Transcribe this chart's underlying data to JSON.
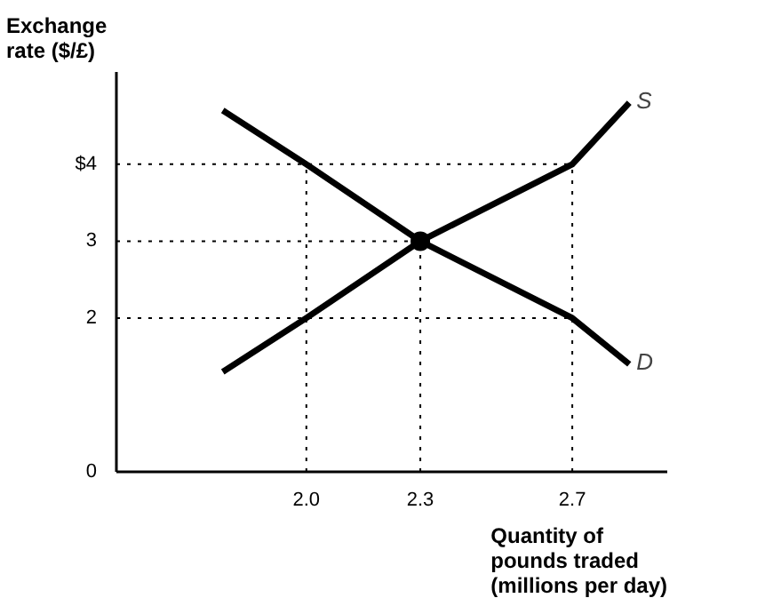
{
  "chart_data": {
    "type": "line",
    "xlabel": "Quantity of pounds traded (millions per day)",
    "ylabel": "Exchange rate ($/£)",
    "xlim": [
      1.5,
      2.95
    ],
    "ylim": [
      0,
      5.2
    ],
    "xticks": [
      {
        "value": 2.0,
        "label": "2.0"
      },
      2.3,
      2.7
    ],
    "yticks": [
      0,
      2,
      3,
      {
        "value": 4,
        "label": "$4"
      }
    ],
    "grid": false,
    "line_style": "solid",
    "series": [
      {
        "name": "S",
        "color": "#000000",
        "x": [
          1.78,
          2.0,
          2.3,
          2.7,
          2.85
        ],
        "values": [
          1.3,
          2,
          3,
          4,
          4.8
        ]
      },
      {
        "name": "D",
        "color": "#000000",
        "x": [
          1.78,
          2.0,
          2.3,
          2.7,
          2.85
        ],
        "values": [
          4.7,
          4,
          3,
          2,
          1.4
        ]
      },
      {
        "type": "scatter",
        "marker": "circle",
        "color": "#000000",
        "x": [
          2.3
        ],
        "values": [
          3
        ]
      }
    ],
    "ref_lines": [
      {
        "axis": "y",
        "value": 4,
        "line_style": "dotted",
        "color": "#000000"
      },
      {
        "axis": "y",
        "value": 3,
        "line_style": "dotted",
        "color": "#000000"
      },
      {
        "axis": "y",
        "value": 2,
        "line_style": "dotted",
        "color": "#000000"
      },
      {
        "axis": "x",
        "value": 2.0,
        "line_style": "dotted",
        "color": "#000000"
      },
      {
        "axis": "x",
        "value": 2.3,
        "line_style": "dotted",
        "color": "#000000"
      },
      {
        "axis": "x",
        "value": 2.7,
        "line_style": "dotted",
        "color": "#000000"
      }
    ]
  }
}
